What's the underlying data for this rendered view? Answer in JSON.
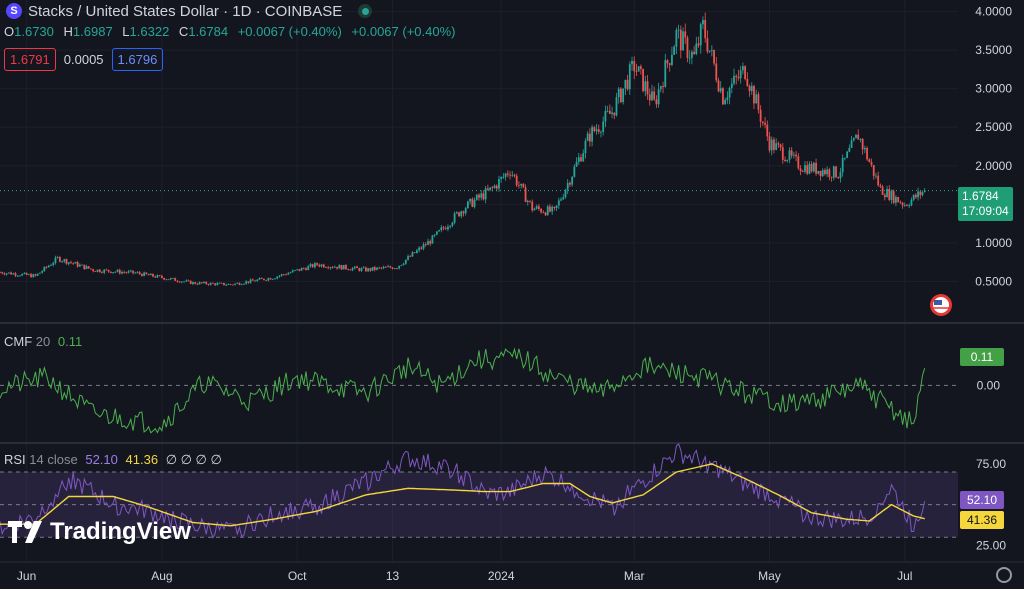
{
  "header": {
    "title": "Stacks / United States Dollar · 1D · COINBASE",
    "symbol_icon": "stacks-icon",
    "ohlc": [
      {
        "k": "O",
        "v": "1.6730"
      },
      {
        "k": "H",
        "v": "1.6987"
      },
      {
        "k": "L",
        "v": "1.6322"
      },
      {
        "k": "C",
        "v": "1.6784"
      },
      {
        "k": "",
        "v": "+0.0067 (+0.40%)"
      },
      {
        "k": "",
        "v": "+0.0067 (+0.40%)"
      }
    ],
    "sell": "1.6791",
    "spread": "0.0005",
    "buy": "1.6796"
  },
  "price_tag": {
    "value": "1.6784",
    "timer": "17:09:04"
  },
  "cmf": {
    "name": "CMF",
    "param": "20",
    "value": "0.11",
    "tag": "0.11"
  },
  "rsi": {
    "name": "RSI",
    "param": "14 close",
    "value": "52.10",
    "ma": "41.36",
    "extra": "∅ ∅ ∅ ∅",
    "tag_rsi": "52.10",
    "tag_ma": "41.36"
  },
  "logo": "TradingView",
  "colors": {
    "up": "#26a69a",
    "down": "#ef5350",
    "cmf": "#4caf50",
    "rsi": "#7e57c2",
    "rsi_ma": "#f5d63d",
    "bg": "#14161f"
  },
  "chart_data": [
    {
      "type": "candlestick",
      "title": "Stacks / United States Dollar · 1D · COINBASE",
      "x_ticks": [
        "Jun",
        "Aug",
        "Oct",
        "13",
        "2024",
        "Mar",
        "May",
        "Jul"
      ],
      "y_ticks": [
        "4.0000",
        "3.5000",
        "3.0000",
        "2.5000",
        "2.0000",
        "1.5000",
        "1.0000",
        "0.5000"
      ],
      "ylim": [
        0,
        4.15
      ],
      "close_path": {
        "x": [
          "2023-05-20",
          "2023-06-05",
          "2023-06-15",
          "2023-07-01",
          "2023-07-20",
          "2023-08-15",
          "2023-09-01",
          "2023-09-20",
          "2023-10-10",
          "2023-11-01",
          "2023-11-15",
          "2023-12-01",
          "2023-12-15",
          "2023-12-28",
          "2024-01-05",
          "2024-01-15",
          "2024-01-25",
          "2024-02-10",
          "2024-02-20",
          "2024-03-01",
          "2024-03-10",
          "2024-03-20",
          "2024-03-28",
          "2024-04-01",
          "2024-04-10",
          "2024-04-20",
          "2024-05-01",
          "2024-05-15",
          "2024-06-01",
          "2024-06-10",
          "2024-06-20",
          "2024-07-01",
          "2024-07-10"
        ],
        "values": [
          0.62,
          0.57,
          0.8,
          0.65,
          0.61,
          0.48,
          0.46,
          0.55,
          0.72,
          0.65,
          0.69,
          1.05,
          1.45,
          1.7,
          1.95,
          1.45,
          1.4,
          2.4,
          2.7,
          3.3,
          2.8,
          3.7,
          3.4,
          3.8,
          2.9,
          3.25,
          2.3,
          2.0,
          1.9,
          2.4,
          1.7,
          1.5,
          1.68
        ]
      },
      "last": {
        "value": 1.6784,
        "label": "1.6784",
        "timer": "17:09:04"
      }
    },
    {
      "type": "line",
      "name": "CMF 20",
      "ylim": [
        -0.35,
        0.38
      ],
      "y_ticks": [
        "0.00"
      ],
      "x": [
        "2023-05-20",
        "2023-06-10",
        "2023-07-01",
        "2023-08-01",
        "2023-08-20",
        "2023-09-10",
        "2023-10-01",
        "2023-11-01",
        "2023-11-20",
        "2023-12-05",
        "2023-12-20",
        "2024-01-10",
        "2024-01-25",
        "2024-02-15",
        "2024-03-05",
        "2024-04-01",
        "2024-04-20",
        "2024-05-10",
        "2024-05-25",
        "2024-06-10",
        "2024-06-25",
        "2024-07-05",
        "2024-07-10"
      ],
      "values": [
        -0.02,
        0.05,
        -0.18,
        -0.25,
        0.02,
        -0.1,
        0.05,
        -0.05,
        0.12,
        0.0,
        0.16,
        0.18,
        0.05,
        -0.05,
        0.12,
        0.05,
        -0.05,
        -0.12,
        -0.08,
        0.0,
        -0.15,
        -0.25,
        0.11
      ]
    },
    {
      "type": "line",
      "name": "RSI 14 close",
      "ylim": [
        16,
        86
      ],
      "y_ticks": [
        "75.00",
        "25.00"
      ],
      "band": [
        30,
        70
      ],
      "midline": 50,
      "x": [
        "2023-05-20",
        "2023-06-05",
        "2023-06-20",
        "2023-07-10",
        "2023-07-25",
        "2023-08-15",
        "2023-09-01",
        "2023-09-20",
        "2023-10-10",
        "2023-11-01",
        "2023-11-20",
        "2023-12-10",
        "2023-12-25",
        "2024-01-05",
        "2024-01-20",
        "2024-02-01",
        "2024-02-10",
        "2024-02-20",
        "2024-03-05",
        "2024-03-20",
        "2024-04-05",
        "2024-04-20",
        "2024-05-05",
        "2024-05-20",
        "2024-06-05",
        "2024-06-15",
        "2024-06-25",
        "2024-07-05",
        "2024-07-10"
      ],
      "series": [
        {
          "name": "RSI",
          "values": [
            36,
            42,
            66,
            50,
            46,
            37,
            33,
            44,
            49,
            64,
            78,
            72,
            56,
            57,
            69,
            62,
            54,
            48,
            64,
            82,
            74,
            62,
            54,
            42,
            40,
            43,
            60,
            37,
            52.1
          ]
        },
        {
          "name": "MA",
          "values": [
            38,
            38,
            55,
            55,
            49,
            39,
            37,
            41,
            46,
            56,
            60,
            59,
            58,
            58,
            63,
            63,
            55,
            51,
            56,
            70,
            75,
            66,
            56,
            45,
            41,
            40,
            50,
            43,
            41.36
          ]
        }
      ]
    }
  ]
}
